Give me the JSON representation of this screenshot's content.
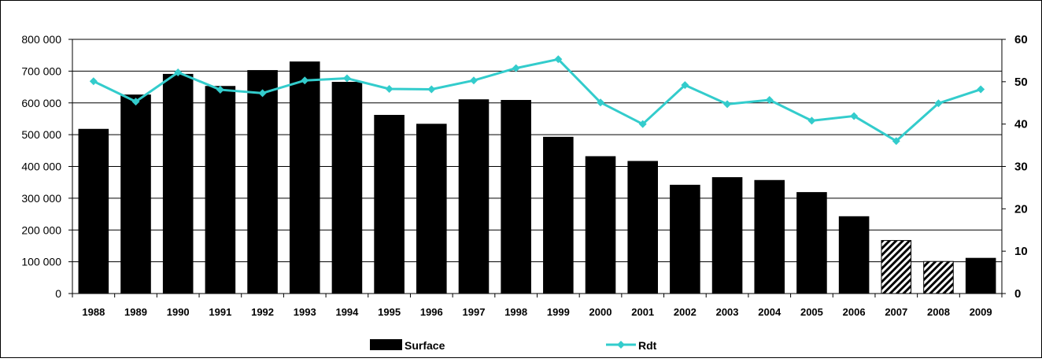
{
  "chart_data": {
    "type": "bar",
    "categories": [
      "1988",
      "1989",
      "1990",
      "1991",
      "1992",
      "1993",
      "1994",
      "1995",
      "1996",
      "1997",
      "1998",
      "1999",
      "2000",
      "2001",
      "2002",
      "2003",
      "2004",
      "2005",
      "2006",
      "2007",
      "2008",
      "2009"
    ],
    "series": [
      {
        "name": "Surface",
        "type": "bar",
        "axis": "left",
        "color": "#000000",
        "hatched_categories": [
          "2007",
          "2008"
        ],
        "values": [
          517000,
          625000,
          690000,
          652000,
          702000,
          729000,
          665000,
          561000,
          533000,
          610000,
          608000,
          492000,
          431000,
          416000,
          341000,
          365000,
          356000,
          318000,
          242000,
          167000,
          101000,
          111000
        ]
      },
      {
        "name": "Rdt",
        "type": "line",
        "axis": "right",
        "color": "#33CCCC",
        "values": [
          50.1,
          45.3,
          52.2,
          48.1,
          47.3,
          50.3,
          50.8,
          48.3,
          48.2,
          50.3,
          53.2,
          55.3,
          45.1,
          40.0,
          49.2,
          44.7,
          45.7,
          40.8,
          41.9,
          36.0,
          44.9,
          48.2
        ]
      }
    ],
    "y_left": {
      "min": 0,
      "max": 800000,
      "ticks": [
        "0",
        "100 000",
        "200 000",
        "300 000",
        "400 000",
        "500 000",
        "600 000",
        "700 000",
        "800 000"
      ]
    },
    "y_right": {
      "min": 0,
      "max": 60,
      "ticks": [
        "0",
        "10",
        "20",
        "30",
        "40",
        "50",
        "60"
      ]
    },
    "grid": true,
    "legend_position": "bottom"
  }
}
